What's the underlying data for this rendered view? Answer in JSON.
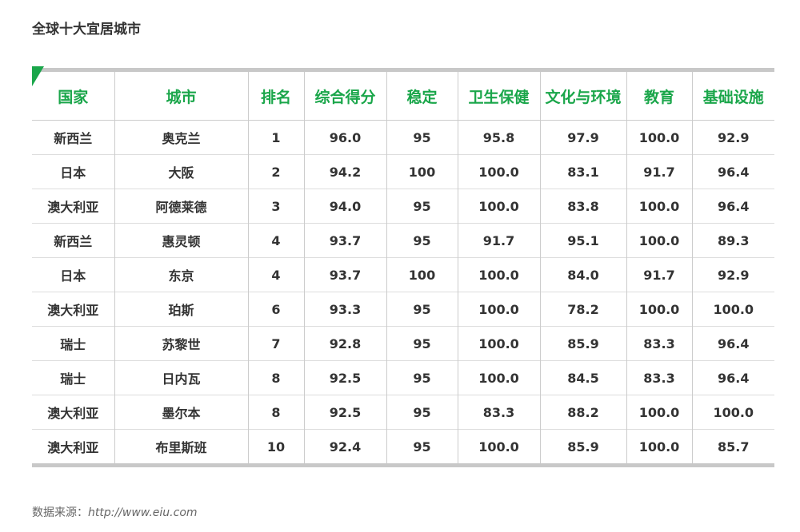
{
  "title": "全球十大宜居城市",
  "table": {
    "header": [
      "国家",
      "城市",
      "排名",
      "综合得分",
      "稳定",
      "卫生保健",
      "文化与环境",
      "教育",
      "基础设施"
    ],
    "rows": [
      [
        "新西兰",
        "奥克兰",
        "1",
        "96.0",
        "95",
        "95.8",
        "97.9",
        "100.0",
        "92.9"
      ],
      [
        "日本",
        "大阪",
        "2",
        "94.2",
        "100",
        "100.0",
        "83.1",
        "91.7",
        "96.4"
      ],
      [
        "澳大利亚",
        "阿德莱德",
        "3",
        "94.0",
        "95",
        "100.0",
        "83.8",
        "100.0",
        "96.4"
      ],
      [
        "新西兰",
        "惠灵顿",
        "4",
        "93.7",
        "95",
        "91.7",
        "95.1",
        "100.0",
        "89.3"
      ],
      [
        "日本",
        "东京",
        "4",
        "93.7",
        "100",
        "100.0",
        "84.0",
        "91.7",
        "92.9"
      ],
      [
        "澳大利亚",
        "珀斯",
        "6",
        "93.3",
        "95",
        "100.0",
        "78.2",
        "100.0",
        "100.0"
      ],
      [
        "瑞士",
        "苏黎世",
        "7",
        "92.8",
        "95",
        "100.0",
        "85.9",
        "83.3",
        "96.4"
      ],
      [
        "瑞士",
        "日内瓦",
        "8",
        "92.5",
        "95",
        "100.0",
        "84.5",
        "83.3",
        "96.4"
      ],
      [
        "澳大利亚",
        "墨尔本",
        "8",
        "92.5",
        "95",
        "83.3",
        "88.2",
        "100.0",
        "100.0"
      ],
      [
        "澳大利亚",
        "布里斯班",
        "10",
        "92.4",
        "95",
        "100.0",
        "85.9",
        "100.0",
        "85.7"
      ]
    ]
  },
  "source": {
    "label": "数据来源：",
    "url": "http://www.eiu.com"
  }
}
